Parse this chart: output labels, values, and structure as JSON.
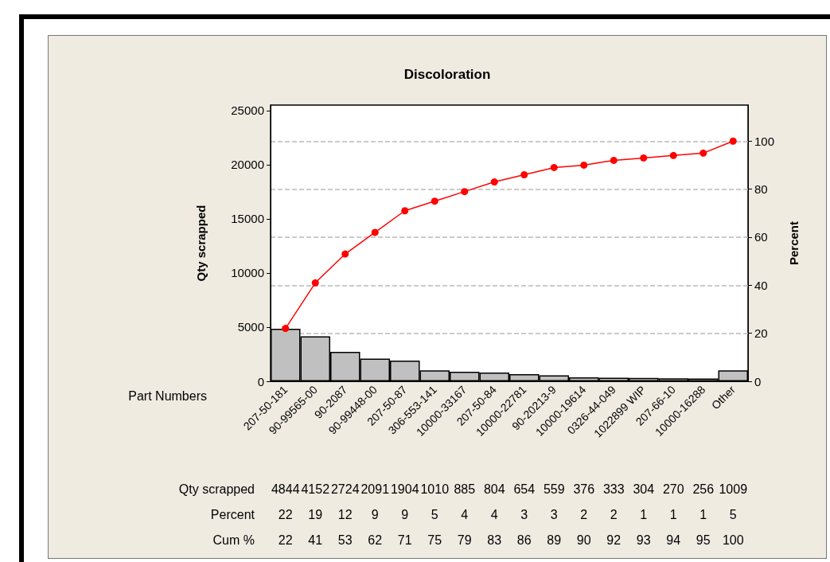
{
  "chart_data": {
    "type": "bar",
    "title": "Discoloration",
    "xlabel": "Part Numbers",
    "ylabel": "Qty scrapped",
    "y2label": "Percent",
    "categories": [
      "207-50-181",
      "90-99565-00",
      "90-2087",
      "90-99448-00",
      "207-50-87",
      "306-553-141",
      "10000-33167",
      "207-50-84",
      "10000-22781",
      "90-20213-9",
      "10000-19614",
      "0326-44-049",
      "1022899 WIP",
      "207-66-10",
      "10000-16288",
      "Other"
    ],
    "series": [
      {
        "color": "#c0c0c0",
        "values": [
          4844,
          4152,
          2724,
          2091,
          1904,
          1010,
          885,
          804,
          654,
          559,
          376,
          333,
          304,
          270,
          256,
          1009
        ],
        "value_labels": [
          "4844",
          "4152",
          "2724",
          "2091",
          "1904",
          "1010",
          "885",
          "804",
          "654",
          "559",
          "376",
          "333",
          "304",
          "270",
          "256",
          "1009"
        ]
      },
      {
        "type": "line",
        "axis": "y2",
        "color": "#ff0000",
        "values": [
          22,
          41,
          53,
          62,
          71,
          75,
          79,
          83,
          86,
          89,
          90,
          92,
          93,
          94,
          95,
          100
        ],
        "value_labels": [
          "22",
          "41",
          "53",
          "62",
          "71",
          "75",
          "79",
          "83",
          "86",
          "89",
          "90",
          "92",
          "93",
          "94",
          "95",
          "100"
        ]
      }
    ],
    "annotations": [
      "Qty scrapped",
      "Percent",
      "Cum %",
      "22",
      "19",
      "12",
      "9",
      "9",
      "5",
      "4",
      "4",
      "3",
      "3",
      "2",
      "2",
      "1",
      "1",
      "1",
      "5"
    ],
    "ylim": [
      0,
      25500
    ],
    "yticks": [
      0,
      5000,
      10000,
      15000,
      20000,
      25000
    ],
    "y2lim": [
      0,
      115
    ],
    "y2ticks": [
      0,
      20,
      40,
      60,
      80,
      100
    ],
    "grid": "y2",
    "marker": "circle"
  }
}
